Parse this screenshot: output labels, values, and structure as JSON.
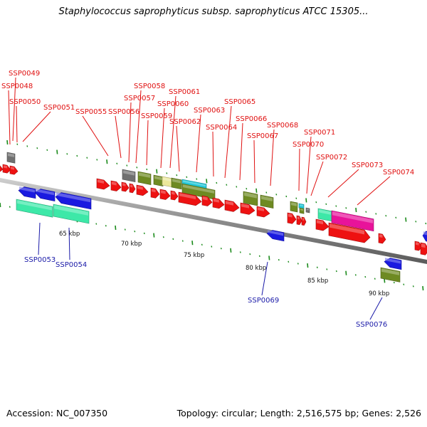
{
  "title": "Staphylococcus saprophyticus subsp. saprophyticus ATCC 15305...",
  "footer": {
    "accession": "Accession: NC_007350",
    "stats": "Topology: circular; Length: 2,516,575 bp; Genes: 2,526"
  },
  "colors": {
    "red": "#ee1111",
    "blue": "#1a1ae0",
    "olive": "#6e8a22",
    "gray": "#707070",
    "teal": "#3de8a8",
    "cyan": "#22c8d8",
    "yellow": "#ece89a",
    "magenta": "#e8139a",
    "label_top": "#e01010",
    "label_bottom": "#1a1aa8",
    "backbone": "#8c8c8c",
    "tick_green": "#1a8a1a"
  },
  "scale_labels": [
    "65 kbp",
    "70 kbp",
    "75 kbp",
    "80 kbp",
    "85 kbp",
    "90 kbp"
  ],
  "top_labels": [
    "SSP0049",
    "SSP0048",
    "SSP0050",
    "SSP0051",
    "SSP0055",
    "SSP0056",
    "SSP0057",
    "SSP0058",
    "SSP0059",
    "SSP0060",
    "SSP0061",
    "SSP0062",
    "SSP0063",
    "SSP0064",
    "SSP0065",
    "SSP0066",
    "SSP0067",
    "SSP0068",
    "SSP0070",
    "SSP0071",
    "SSP0072",
    "SSP0073",
    "SSP0074"
  ],
  "bottom_labels": [
    "SSP0053",
    "SSP0054",
    "SSP0069",
    "SSP0076"
  ]
}
